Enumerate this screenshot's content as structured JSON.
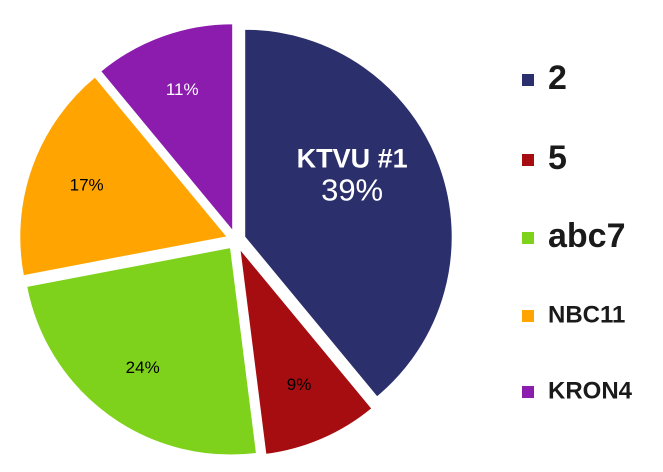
{
  "chart_data": {
    "type": "pie",
    "annotation": "KTVU #1",
    "categories": [
      "2",
      "5",
      "abc7",
      "NBC11",
      "KRON4"
    ],
    "values": [
      39,
      9,
      24,
      17,
      11
    ],
    "value_labels": [
      "39%",
      "9%",
      "24%",
      "17%",
      "11%"
    ],
    "colors": [
      "#2b2f6b",
      "#a50d10",
      "#7fd21c",
      "#ffa400",
      "#8c1cae"
    ],
    "label_colors": [
      "#ffffff",
      "#000000",
      "#000000",
      "#000000",
      "#ffffff"
    ]
  }
}
